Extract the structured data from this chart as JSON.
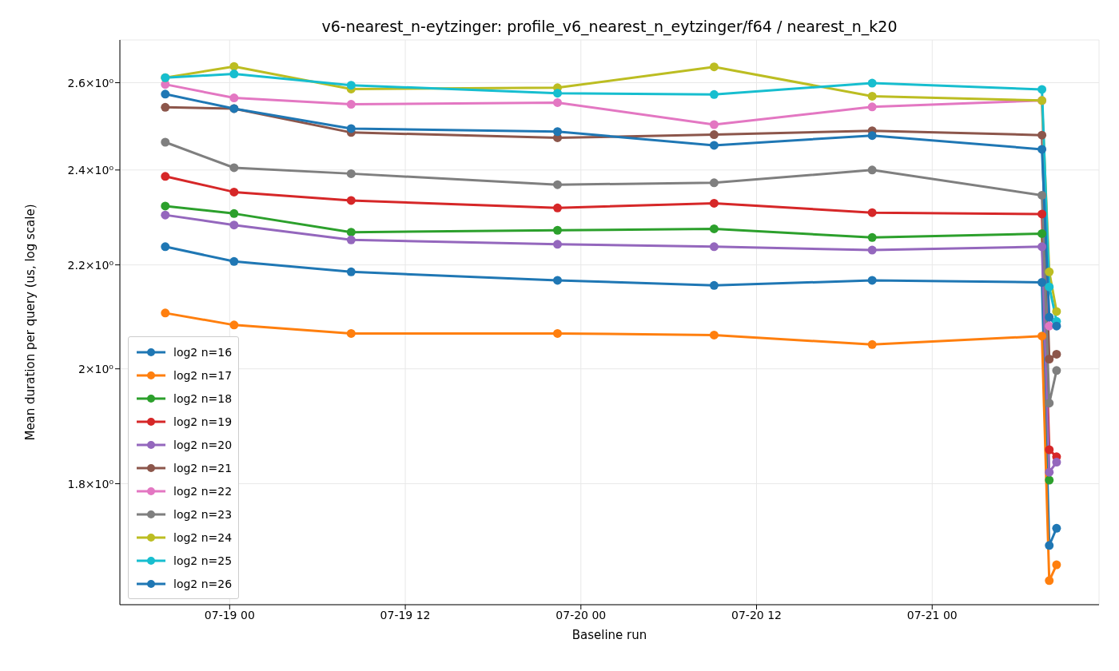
{
  "chart_data": {
    "type": "line",
    "title": "v6-nearest_n-eytzinger: profile_v6_nearest_n_eytzinger/f64 / nearest_n_k20",
    "xlabel": "Baseline run",
    "ylabel": "Mean duration per query (us, log scale)",
    "x": [
      "--07-18T19:36",
      "--07-19T00:18",
      "--07-19T08:18",
      "--07-19T22:24",
      "--07-20T09:06",
      "--07-20T19:54",
      "--07-21T07:30",
      "--07-21T08:00",
      "--07-21T08:30"
    ],
    "xlim": [
      "--07-18T16:30",
      "--07-21T11:24"
    ],
    "xticks": [
      {
        "value": "--07-19T00:00",
        "label": "07-19 00"
      },
      {
        "value": "--07-19T12:00",
        "label": "07-19 12"
      },
      {
        "value": "--07-20T00:00",
        "label": "07-20 00"
      },
      {
        "value": "--07-20T12:00",
        "label": "07-20 12"
      },
      {
        "value": "--07-21T00:00",
        "label": "07-21 00"
      }
    ],
    "ylim": [
      1.611,
      2.704
    ],
    "yticks": [
      {
        "value": 1.8,
        "label": "1.8×10⁰"
      },
      {
        "value": 2,
        "label": "2×10⁰"
      },
      {
        "value": 2.2,
        "label": "2.2×10⁰"
      },
      {
        "value": 2.4,
        "label": "2.4×10⁰"
      },
      {
        "value": 2.6,
        "label": "2.6×10⁰"
      }
    ],
    "log": "y",
    "grid": true,
    "legend": "bottom left",
    "marker": "circle",
    "line_style": "solid",
    "series": [
      {
        "name": "log2 n=16",
        "color": "#1f77b4",
        "values": [
          2.237,
          2.207,
          2.186,
          2.169,
          2.159,
          2.169,
          2.165,
          1.701,
          1.728
        ]
      },
      {
        "name": "log2 n=17",
        "color": "#ff7f0e",
        "values": [
          2.105,
          2.082,
          2.066,
          2.066,
          2.063,
          2.045,
          2.061,
          1.647,
          1.671
        ]
      },
      {
        "name": "log2 n=18",
        "color": "#2ca02c",
        "values": [
          2.322,
          2.306,
          2.267,
          2.271,
          2.274,
          2.256,
          2.264,
          1.806,
          null
        ]
      },
      {
        "name": "log2 n=19",
        "color": "#d62728",
        "values": [
          2.386,
          2.352,
          2.334,
          2.318,
          2.328,
          2.308,
          2.305,
          1.857,
          1.845
        ]
      },
      {
        "name": "log2 n=20",
        "color": "#9467bd",
        "values": [
          2.303,
          2.282,
          2.251,
          2.242,
          2.237,
          2.23,
          2.237,
          1.819,
          1.836
        ]
      },
      {
        "name": "log2 n=21",
        "color": "#8c564b",
        "values": [
          2.542,
          2.539,
          2.484,
          2.472,
          2.479,
          2.488,
          2.478,
          2.018,
          2.027
        ]
      },
      {
        "name": "log2 n=22",
        "color": "#e377c2",
        "values": [
          2.596,
          2.564,
          2.549,
          2.553,
          2.502,
          2.543,
          2.558,
          2.08,
          null
        ]
      },
      {
        "name": "log2 n=23",
        "color": "#7f7f7f",
        "values": [
          2.462,
          2.405,
          2.392,
          2.368,
          2.372,
          2.4,
          2.345,
          1.938,
          1.997
        ]
      },
      {
        "name": "log2 n=24",
        "color": "#bcbd22",
        "values": [
          2.612,
          2.639,
          2.585,
          2.588,
          2.638,
          2.568,
          2.558,
          2.186,
          2.108
        ]
      },
      {
        "name": "log2 n=25",
        "color": "#17becf",
        "values": [
          2.612,
          2.621,
          2.594,
          2.575,
          2.572,
          2.599,
          2.584,
          2.156,
          2.089
        ]
      },
      {
        "name": "log2 n=26",
        "color": "#1f77b4",
        "values": [
          2.573,
          2.539,
          2.493,
          2.486,
          2.455,
          2.477,
          2.446,
          2.097,
          2.08
        ]
      }
    ]
  }
}
